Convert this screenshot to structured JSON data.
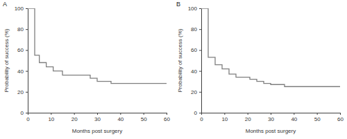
{
  "chart_data": [
    {
      "type": "line",
      "title": "A",
      "x_label": "Months post surgery",
      "y_label": "Probability of success (%)",
      "x": [
        0,
        3,
        5,
        8,
        11,
        15,
        27,
        30,
        36,
        60
      ],
      "values": [
        100,
        55,
        48,
        44,
        40,
        36,
        33,
        30,
        28,
        28
      ],
      "color": "#7f7f7f",
      "line_style": "step",
      "grid": false,
      "xlim": [
        0,
        60
      ],
      "xticks": [
        0,
        10,
        20,
        30,
        40,
        50,
        60
      ],
      "ylim": [
        0,
        100
      ],
      "yticks": [
        0,
        20,
        40,
        60,
        80,
        100
      ]
    },
    {
      "type": "line",
      "title": "B",
      "x_label": "Months post surgery",
      "y_label": "Probability of success (%)",
      "x": [
        0,
        3,
        6,
        9,
        12,
        15,
        21,
        24,
        27,
        30,
        36,
        60
      ],
      "values": [
        100,
        53,
        46,
        42,
        37,
        34,
        32,
        30,
        28,
        27,
        25,
        25
      ],
      "color": "#7f7f7f",
      "line_style": "step",
      "grid": false,
      "xlim": [
        0,
        60
      ],
      "xticks": [
        0,
        10,
        20,
        30,
        40,
        50,
        60
      ],
      "ylim": [
        0,
        100
      ],
      "yticks": [
        0,
        20,
        40,
        60,
        80,
        100
      ]
    }
  ]
}
